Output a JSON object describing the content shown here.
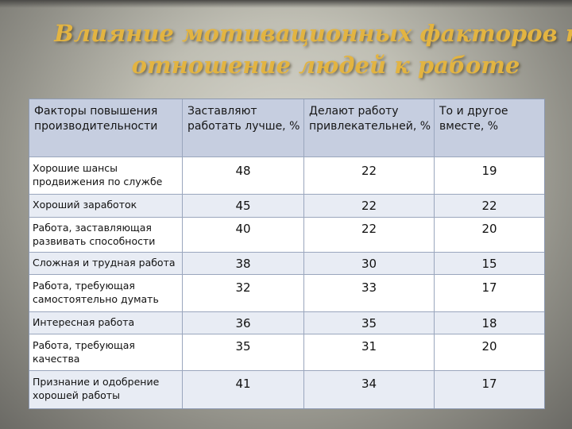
{
  "title": {
    "line1": "Влияние мотивационных факторов на",
    "line2": "отношение людей к работе"
  },
  "table": {
    "headers": [
      "Факторы повышения производительности",
      "Заставляют работать лучше, %",
      "Делают работу привлекательней, %",
      "То и другое вместе, %"
    ],
    "rows": [
      [
        "Хорошие шансы продвижения по службе",
        "48",
        "22",
        "19"
      ],
      [
        "Хороший заработок",
        "45",
        "22",
        "22"
      ],
      [
        "Работа, заставляющая развивать способности",
        "40",
        "22",
        "20"
      ],
      [
        "Сложная и трудная работа",
        "38",
        "30",
        "15"
      ],
      [
        "Работа, требующая самостоятельно думать",
        "32",
        "33",
        "17"
      ],
      [
        "Интересная работа",
        "36",
        "35",
        "18"
      ],
      [
        "Работа, требующая качества",
        "35",
        "31",
        "20"
      ],
      [
        "Признание и одобрение хорошей работы",
        "41",
        "34",
        "17"
      ]
    ]
  }
}
